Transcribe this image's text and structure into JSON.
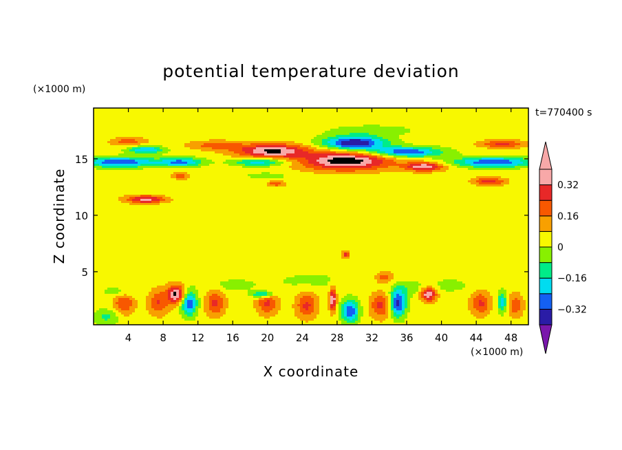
{
  "chart_data": {
    "type": "heatmap",
    "title": "potential temperature deviation",
    "xlabel": "X coordinate",
    "ylabel": "Z coordinate",
    "x_unit": "(×1000 m)",
    "y_unit": "(×1000 m)",
    "time_label": "t=770400 s",
    "xlim": [
      0,
      50
    ],
    "ylim": [
      0.3,
      19.5
    ],
    "x_ticks": [
      4,
      8,
      12,
      16,
      20,
      24,
      28,
      32,
      36,
      40,
      44,
      48
    ],
    "y_ticks": [
      5,
      10,
      15
    ],
    "colorbar": {
      "levels": [
        -0.4,
        -0.32,
        -0.24,
        -0.16,
        -0.08,
        0,
        0.08,
        0.16,
        0.24,
        0.32,
        0.4
      ],
      "tick_values": [
        -0.32,
        -0.16,
        0,
        0.16,
        0.32
      ],
      "tick_labels": [
        "−0.32",
        "−0.16",
        "0",
        "0.16",
        "0.32"
      ],
      "colors": [
        "#7a18ac",
        "#2a1ca6",
        "#1460f2",
        "#00dcf0",
        "#00ec88",
        "#88f000",
        "#f8f800",
        "#f8a000",
        "#f85800",
        "#e82828",
        "#f8a8a8"
      ],
      "extend": "both"
    },
    "background_value": 0.04,
    "features": [
      {
        "x": 3,
        "z": 14.7,
        "rx": 4,
        "rz": 0.45,
        "v": -0.36
      },
      {
        "x": 10,
        "z": 14.7,
        "rx": 2.5,
        "rz": 0.4,
        "v": -0.3
      },
      {
        "x": 19,
        "z": 14.7,
        "rx": 3,
        "rz": 0.35,
        "v": -0.25
      },
      {
        "x": 46,
        "z": 14.7,
        "rx": 4.5,
        "rz": 0.45,
        "v": -0.36
      },
      {
        "x": 6,
        "z": 15.8,
        "rx": 2,
        "rz": 0.35,
        "v": -0.28
      },
      {
        "x": 36,
        "z": 15.6,
        "rx": 4,
        "rz": 0.45,
        "v": -0.36
      },
      {
        "x": 30,
        "z": 16.4,
        "rx": 3.5,
        "rz": 0.6,
        "v": -0.45
      },
      {
        "x": 20.5,
        "z": 15.7,
        "rx": 4,
        "rz": 0.6,
        "v": 0.38
      },
      {
        "x": 29,
        "z": 14.8,
        "rx": 5,
        "rz": 0.8,
        "v": 0.42
      },
      {
        "x": 38,
        "z": 14.3,
        "rx": 2.2,
        "rz": 0.4,
        "v": 0.34
      },
      {
        "x": 47,
        "z": 16.3,
        "rx": 2.5,
        "rz": 0.35,
        "v": 0.22
      },
      {
        "x": 14,
        "z": 16.2,
        "rx": 3,
        "rz": 0.4,
        "v": 0.16
      },
      {
        "x": 4,
        "z": 16.5,
        "rx": 2,
        "rz": 0.4,
        "v": 0.16
      },
      {
        "x": 6,
        "z": 11.4,
        "rx": 2.2,
        "rz": 0.35,
        "v": 0.32
      },
      {
        "x": 45.5,
        "z": 13,
        "rx": 1.8,
        "rz": 0.35,
        "v": 0.24
      },
      {
        "x": 21,
        "z": 12.8,
        "rx": 1,
        "rz": 0.25,
        "v": 0.18
      },
      {
        "x": 10,
        "z": 13.5,
        "rx": 1,
        "rz": 0.3,
        "v": 0.17
      },
      {
        "x": 32,
        "z": 17.5,
        "rx": 5,
        "rz": 0.5,
        "v": -0.09
      },
      {
        "x": 20,
        "z": 13.5,
        "rx": 3,
        "rz": 0.35,
        "v": -0.07
      },
      {
        "x": 9.5,
        "z": 3,
        "rx": 1,
        "rz": 0.8,
        "v": 0.38
      },
      {
        "x": 11,
        "z": 2.2,
        "rx": 0.9,
        "rz": 1.1,
        "v": -0.34
      },
      {
        "x": 7.5,
        "z": 2.3,
        "rx": 1.2,
        "rz": 1.1,
        "v": 0.2
      },
      {
        "x": 14,
        "z": 2.2,
        "rx": 1.1,
        "rz": 1.1,
        "v": 0.22
      },
      {
        "x": 20,
        "z": 2.2,
        "rx": 1.2,
        "rz": 1.0,
        "v": 0.22
      },
      {
        "x": 19.5,
        "z": 3.0,
        "rx": 1.2,
        "rz": 0.3,
        "v": -0.3
      },
      {
        "x": 24.5,
        "z": 2.0,
        "rx": 1.2,
        "rz": 1.1,
        "v": 0.22
      },
      {
        "x": 27.5,
        "z": 2.5,
        "rx": 0.4,
        "rz": 1.0,
        "v": 0.36
      },
      {
        "x": 29.5,
        "z": 1.5,
        "rx": 1.0,
        "rz": 1.0,
        "v": -0.36
      },
      {
        "x": 33,
        "z": 2.0,
        "rx": 1.2,
        "rz": 1.1,
        "v": 0.22
      },
      {
        "x": 35,
        "z": 2.2,
        "rx": 0.9,
        "rz": 1.2,
        "v": -0.4
      },
      {
        "x": 38.5,
        "z": 3.0,
        "rx": 0.9,
        "rz": 0.6,
        "v": 0.36
      },
      {
        "x": 44.5,
        "z": 2.2,
        "rx": 1.1,
        "rz": 1.0,
        "v": 0.22
      },
      {
        "x": 48.5,
        "z": 2.0,
        "rx": 0.9,
        "rz": 1.0,
        "v": 0.18
      },
      {
        "x": 3.5,
        "z": 2.2,
        "rx": 1.2,
        "rz": 1.0,
        "v": 0.2
      },
      {
        "x": 1.5,
        "z": 1.0,
        "rx": 1.5,
        "rz": 0.7,
        "v": -0.14
      },
      {
        "x": 3,
        "z": 3.2,
        "rx": 2,
        "rz": 0.5,
        "v": -0.1
      },
      {
        "x": 47,
        "z": 2.3,
        "rx": 0.5,
        "rz": 0.9,
        "v": -0.26
      },
      {
        "x": 36.5,
        "z": 3.5,
        "rx": 1.8,
        "rz": 0.7,
        "v": -0.09
      },
      {
        "x": 41,
        "z": 3.8,
        "rx": 2,
        "rz": 0.6,
        "v": -0.08
      },
      {
        "x": 29,
        "z": 6.5,
        "rx": 0.4,
        "rz": 0.3,
        "v": 0.24
      },
      {
        "x": 25,
        "z": 4.2,
        "rx": 5,
        "rz": 0.8,
        "v": -0.06
      },
      {
        "x": 16,
        "z": 3.8,
        "rx": 3,
        "rz": 0.6,
        "v": -0.07
      },
      {
        "x": 33.5,
        "z": 4.5,
        "rx": 1,
        "rz": 0.5,
        "v": 0.16
      },
      {
        "x": 30,
        "z": 9.5,
        "rx": 4,
        "rz": 0.8,
        "v": -0.03
      },
      {
        "x": 12,
        "z": 10.5,
        "rx": 4,
        "rz": 0.8,
        "v": -0.03
      },
      {
        "x": 42,
        "z": 10,
        "rx": 3,
        "rz": 0.6,
        "v": -0.03
      },
      {
        "x": 5,
        "z": 8,
        "rx": 3,
        "rz": 1,
        "v": -0.02
      }
    ]
  }
}
